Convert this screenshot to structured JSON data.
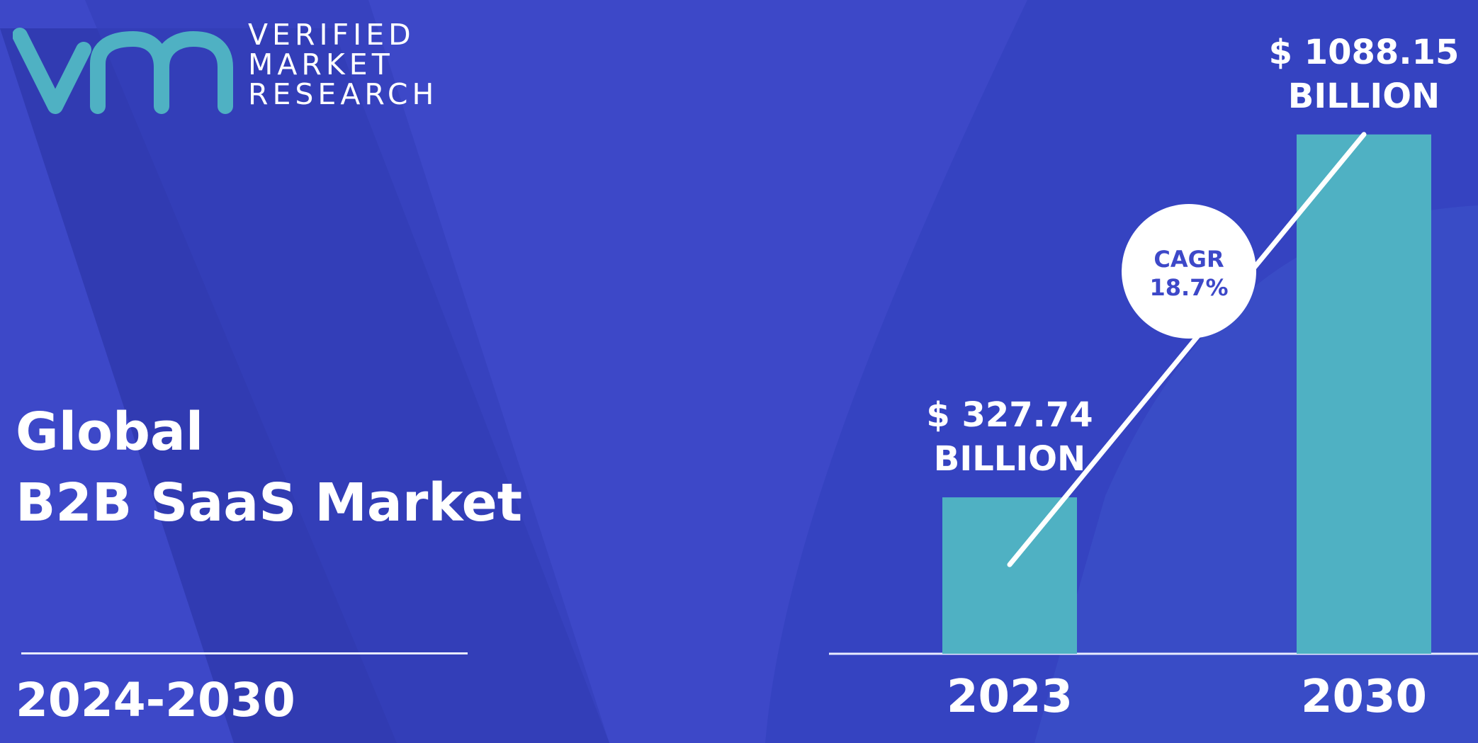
{
  "logo": {
    "lines": [
      "VERIFIED",
      "MARKET",
      "RESEARCH"
    ],
    "mark_color": "#4fb1c3"
  },
  "title": {
    "line1": "Global",
    "line2": "B2B SaaS Market"
  },
  "period": "2024-2030",
  "colors": {
    "background": "#3d48c8",
    "background_dark": "#2f3aae",
    "bar": "#4fb1c3",
    "text": "#ffffff"
  },
  "chart_data": {
    "type": "bar",
    "categories": [
      "2023",
      "2030"
    ],
    "values": [
      327.74,
      1088.15
    ],
    "value_labels": [
      [
        "$ 327.74",
        "BILLION"
      ],
      [
        "$ 1088.15",
        "BILLION"
      ]
    ],
    "cagr": {
      "label": "CAGR",
      "value": "18.7%"
    },
    "grid": false
  }
}
